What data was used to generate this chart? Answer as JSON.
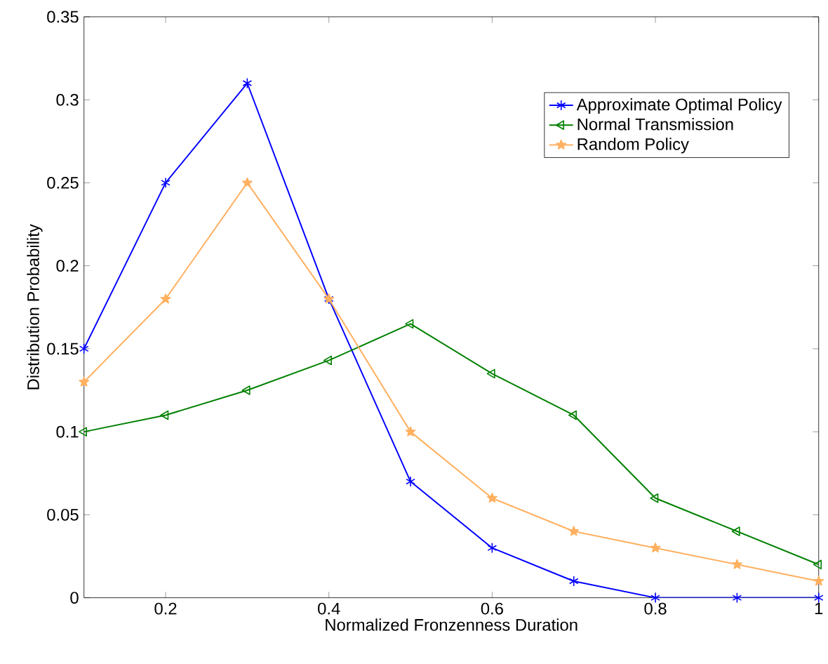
{
  "chart_data": {
    "type": "line",
    "xlabel": "Normalized Fronzenness Duration",
    "ylabel": "Distribution Probability",
    "x": [
      0.1,
      0.2,
      0.3,
      0.4,
      0.5,
      0.6,
      0.7,
      0.8,
      0.9,
      1
    ],
    "series": [
      {
        "name": "Approximate Optimal Policy",
        "color": "#0000ff",
        "marker": "cross",
        "values": [
          0.15,
          0.25,
          0.31,
          0.18,
          0.07,
          0.03,
          0.01,
          0,
          0,
          0
        ]
      },
      {
        "name": "Normal Transmission",
        "color": "#008000",
        "marker": "triangle",
        "values": [
          0.1,
          0.11,
          0.125,
          0.143,
          0.165,
          0.135,
          0.11,
          0.06,
          0.04,
          0.02
        ]
      },
      {
        "name": "Random Policy",
        "color": "#ffb060",
        "marker": "star",
        "values": [
          0.13,
          0.18,
          0.25,
          0.18,
          0.1,
          0.06,
          0.04,
          0.03,
          0.02,
          0.01
        ]
      }
    ],
    "xlim": [
      0.1,
      1
    ],
    "xticks": [
      0.2,
      0.4,
      0.6,
      0.8,
      1
    ],
    "ylim": [
      0,
      0.35
    ],
    "yticks": [
      0,
      0.05,
      0.1,
      0.15,
      0.2,
      0.25,
      0.3,
      0.35
    ],
    "grid": false,
    "legend": "top right",
    "line_style": "solid"
  }
}
